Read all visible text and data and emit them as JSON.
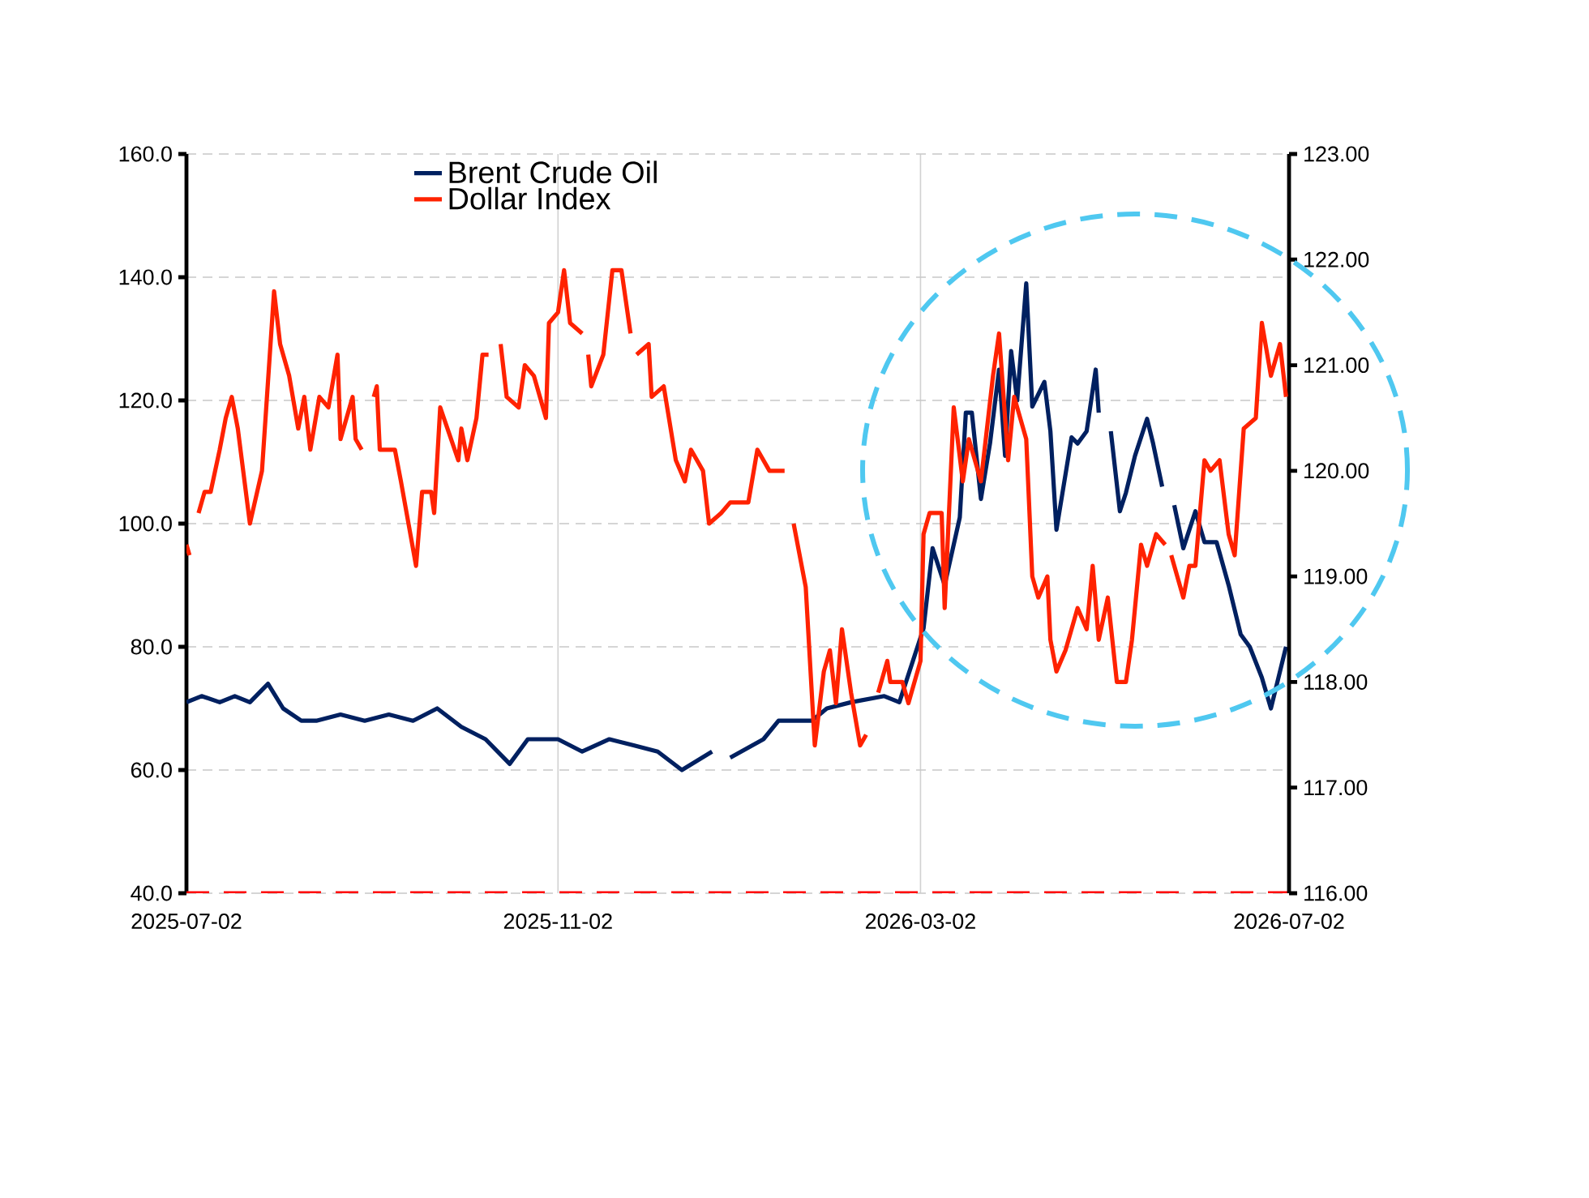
{
  "chart_data": {
    "type": "line",
    "xlim": [
      "2025-07-02",
      "2026-07-02"
    ],
    "xticks": [
      "2025-07-02",
      "2025-11-02",
      "2026-03-02",
      "2026-07-02"
    ],
    "ylim": [
      40,
      160
    ],
    "yticks": [
      {
        "value": 40,
        "label": "40.0"
      },
      {
        "value": 60,
        "label": "60.0"
      },
      {
        "value": 80,
        "label": "80.0"
      },
      {
        "value": 100,
        "label": "100.0"
      },
      {
        "value": 120,
        "label": "120.0"
      },
      {
        "value": 140,
        "label": "140.0"
      },
      {
        "value": 160,
        "label": "160.0"
      }
    ],
    "y2lim": [
      116,
      123
    ],
    "y2ticks": [
      {
        "value": 116,
        "label": "116.00"
      },
      {
        "value": 117,
        "label": "117.00"
      },
      {
        "value": 118,
        "label": "118.00"
      },
      {
        "value": 119,
        "label": "119.00"
      },
      {
        "value": 120,
        "label": "120.00"
      },
      {
        "value": 121,
        "label": "121.00"
      },
      {
        "value": 122,
        "label": "122.00"
      },
      {
        "value": 123,
        "label": "123.00"
      }
    ],
    "grid": true,
    "legend": "top",
    "line_style": "solid",
    "ref_lines": [
      {
        "axis": "y",
        "value": 40,
        "color": "#ff0000",
        "line_style": "dashed"
      }
    ],
    "series": [
      {
        "name": "Brent Crude Oil",
        "color": "#002060",
        "x": [
          "2025-07-02",
          "2025-07-07",
          "2025-07-13",
          "2025-07-18",
          "2025-07-23",
          "2025-07-29",
          "2025-08-03",
          "2025-08-09",
          "2025-08-14",
          "2025-08-22",
          "2025-08-30",
          "2025-09-07",
          "2025-09-15",
          "2025-09-23",
          "2025-10-01",
          "2025-10-09",
          "2025-10-17",
          "2025-10-23",
          "2025-11-02",
          "2025-11-10",
          "2025-11-19",
          "2025-11-27",
          "2025-12-05",
          "2025-12-13",
          "2025-12-23",
          "2025-12-26",
          "2025-12-29",
          "2026-01-09",
          "2026-01-14",
          "2026-01-25",
          "2026-01-30",
          "2026-02-07",
          "2026-02-18",
          "2026-02-23",
          "2026-03-03",
          "2026-03-06",
          "2026-03-10",
          "2026-03-15",
          "2026-03-17",
          "2026-03-19",
          "2026-03-22",
          "2026-03-25",
          "2026-03-28",
          "2026-03-30",
          "2026-04-01",
          "2026-04-03",
          "2026-04-06",
          "2026-04-08",
          "2026-04-12",
          "2026-04-14",
          "2026-04-16",
          "2026-04-21",
          "2026-04-23",
          "2026-04-26",
          "2026-04-29",
          "2026-04-30",
          "2026-05-02",
          "2026-05-04",
          "2026-05-07",
          "2026-05-09",
          "2026-05-12",
          "2026-05-16",
          "2026-05-18",
          "2026-05-21",
          "2026-05-23",
          "2026-05-25",
          "2026-05-28",
          "2026-06-01",
          "2026-06-04",
          "2026-06-08",
          "2026-06-12",
          "2026-06-16",
          "2026-06-19",
          "2026-06-23",
          "2026-06-26",
          "2026-06-28",
          "2026-07-01"
        ],
        "values": [
          71,
          72,
          71,
          72,
          71,
          74,
          70,
          68,
          68,
          69,
          68,
          69,
          68,
          70,
          67,
          65,
          61,
          65,
          65,
          63,
          65,
          64,
          63,
          60,
          63,
          null,
          62,
          65,
          68,
          68,
          70,
          71,
          72,
          71,
          83,
          96,
          90,
          101,
          118,
          118,
          104,
          113,
          125,
          111,
          128,
          120,
          139,
          119,
          123,
          115,
          99,
          114,
          113,
          115,
          125,
          118,
          null,
          115,
          102,
          105,
          111,
          117,
          113,
          106,
          null,
          103,
          96,
          102,
          97,
          97,
          90,
          82,
          80,
          75,
          70,
          74,
          80
        ]
      },
      {
        "name": "Dollar Index",
        "color": "#ff2200",
        "axis": "y2",
        "x": [
          "2025-07-02",
          "2025-07-03",
          "2025-07-04",
          "2025-07-06",
          "2025-07-08",
          "2025-07-10",
          "2025-07-13",
          "2025-07-15",
          "2025-07-17",
          "2025-07-19",
          "2025-07-23",
          "2025-07-27",
          "2025-07-31",
          "2025-08-02",
          "2025-08-05",
          "2025-08-08",
          "2025-08-10",
          "2025-08-12",
          "2025-08-15",
          "2025-08-18",
          "2025-08-21",
          "2025-08-22",
          "2025-08-26",
          "2025-08-27",
          "2025-08-29",
          "2025-08-31",
          "2025-09-02",
          "2025-09-03",
          "2025-09-04",
          "2025-09-09",
          "2025-09-11",
          "2025-09-16",
          "2025-09-18",
          "2025-09-21",
          "2025-09-22",
          "2025-09-24",
          "2025-09-30",
          "2025-10-01",
          "2025-10-03",
          "2025-10-06",
          "2025-10-08",
          "2025-10-10",
          "2025-10-12",
          "2025-10-14",
          "2025-10-16",
          "2025-10-20",
          "2025-10-22",
          "2025-10-25",
          "2025-10-29",
          "2025-10-30",
          "2025-11-02",
          "2025-11-04",
          "2025-11-06",
          "2025-11-10",
          "2025-11-11",
          "2025-11-12",
          "2025-11-13",
          "2025-11-17",
          "2025-11-20",
          "2025-11-23",
          "2025-11-26",
          "2025-11-27",
          "2025-11-28",
          "2025-12-02",
          "2025-12-03",
          "2025-12-07",
          "2025-12-11",
          "2025-12-14",
          "2025-12-16",
          "2025-12-20",
          "2025-12-22",
          "2025-12-26",
          "2025-12-29",
          "2025-12-30",
          "2026-01-04",
          "2026-01-07",
          "2026-01-11",
          "2026-01-16",
          "2026-01-17",
          "2026-01-19",
          "2026-01-23",
          "2026-01-26",
          "2026-01-29",
          "2026-01-31",
          "2026-02-02",
          "2026-02-04",
          "2026-02-07",
          "2026-02-10",
          "2026-02-12",
          "2026-02-14",
          "2026-02-16",
          "2026-02-19",
          "2026-02-20",
          "2026-02-24",
          "2026-02-26",
          "2026-03-02",
          "2026-03-03",
          "2026-03-05",
          "2026-03-09",
          "2026-03-10",
          "2026-03-13",
          "2026-03-16",
          "2026-03-18",
          "2026-03-22",
          "2026-03-26",
          "2026-03-28",
          "2026-03-31",
          "2026-04-02",
          "2026-04-04",
          "2026-04-06",
          "2026-04-08",
          "2026-04-10",
          "2026-04-13",
          "2026-04-14",
          "2026-04-16",
          "2026-04-19",
          "2026-04-23",
          "2026-04-26",
          "2026-04-28",
          "2026-04-30",
          "2026-05-03",
          "2026-05-06",
          "2026-05-09",
          "2026-05-11",
          "2026-05-14",
          "2026-05-16",
          "2026-05-19",
          "2026-05-22",
          "2026-05-23",
          "2026-05-24",
          "2026-05-28",
          "2026-05-30",
          "2026-06-01",
          "2026-06-04",
          "2026-06-06",
          "2026-06-09",
          "2026-06-12",
          "2026-06-14",
          "2026-06-17",
          "2026-06-21",
          "2026-06-23",
          "2026-06-26",
          "2026-06-29",
          "2026-07-01"
        ],
        "values": [
          119.3,
          119.2,
          null,
          119.6,
          119.8,
          119.8,
          120.2,
          120.5,
          120.7,
          120.4,
          119.5,
          120.0,
          121.7,
          121.2,
          120.9,
          120.4,
          120.7,
          120.2,
          120.7,
          120.6,
          121.1,
          120.3,
          120.7,
          120.3,
          120.2,
          null,
          120.7,
          120.8,
          120.2,
          120.2,
          119.9,
          119.1,
          119.8,
          119.8,
          119.6,
          120.6,
          120.1,
          120.4,
          120.1,
          120.5,
          121.1,
          121.1,
          null,
          121.2,
          120.7,
          120.6,
          121.0,
          120.9,
          120.5,
          121.4,
          121.5,
          121.9,
          121.4,
          121.3,
          null,
          121.1,
          120.8,
          121.1,
          121.9,
          121.9,
          121.3,
          null,
          121.1,
          121.2,
          120.7,
          120.8,
          120.1,
          119.9,
          120.2,
          120.0,
          119.5,
          119.6,
          119.7,
          119.7,
          119.7,
          120.2,
          120.0,
          120.0,
          null,
          119.5,
          118.9,
          117.4,
          118.1,
          118.3,
          117.8,
          118.5,
          117.9,
          117.4,
          117.5,
          null,
          117.9,
          118.2,
          118.0,
          118.0,
          117.8,
          118.2,
          119.4,
          119.6,
          119.6,
          118.7,
          120.6,
          119.9,
          120.3,
          119.9,
          120.9,
          121.3,
          120.1,
          120.7,
          120.5,
          120.3,
          119.0,
          118.8,
          119.0,
          118.4,
          118.1,
          118.3,
          118.7,
          118.5,
          119.1,
          118.4,
          118.8,
          118.0,
          118.0,
          118.4,
          119.3,
          119.1,
          119.4,
          119.3,
          null,
          119.2,
          118.8,
          119.1,
          119.1,
          120.1,
          120.0,
          120.1,
          119.4,
          119.2,
          120.4,
          120.5,
          121.4,
          120.9,
          121.2,
          120.7
        ]
      }
    ]
  }
}
